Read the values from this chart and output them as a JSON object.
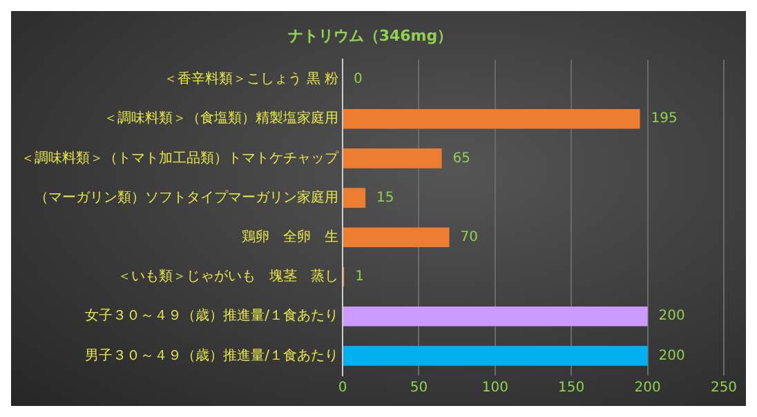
{
  "chart_data": {
    "type": "bar",
    "orientation": "horizontal",
    "title": "ナトリウム（346mg）",
    "categories": [
      "＜香辛料類＞こしょう 黒 粉",
      "＜調味料類＞（食塩類）精製塩家庭用",
      "＜調味料類＞（トマト加工品類）トマトケチャップ",
      "（マーガリン類）ソフトタイプマーガリン家庭用",
      "鶏卵　全卵　生",
      "＜いも類＞じゃがいも　塊茎　蒸し",
      "女子３０～４９（歳）推進量/１食あたり",
      "男子３０～４９（歳）推進量/１食あたり"
    ],
    "values": [
      0,
      195,
      65,
      15,
      70,
      1,
      200,
      200
    ],
    "colors": [
      "#ed7d31",
      "#ed7d31",
      "#ed7d31",
      "#ed7d31",
      "#ed7d31",
      "#ed7d31",
      "#cc99ff",
      "#00b0f0"
    ],
    "xlim": [
      0,
      250
    ],
    "xticks": [
      0,
      50,
      100,
      150,
      200,
      250
    ],
    "grid": "x",
    "data_labels": true
  }
}
